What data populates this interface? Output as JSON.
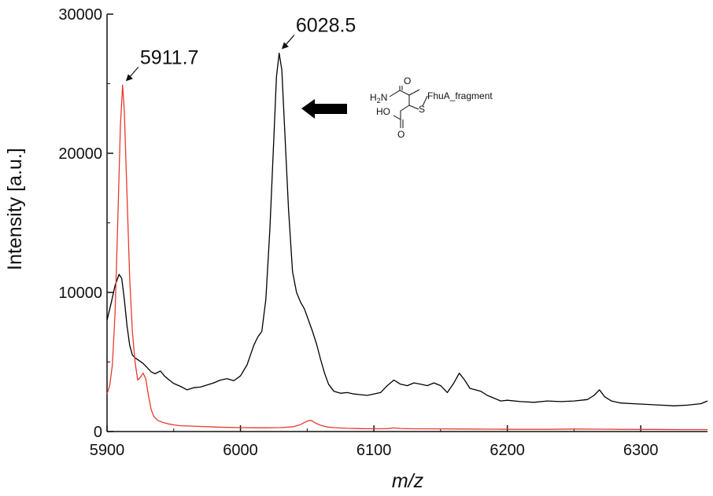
{
  "chart_data": {
    "type": "line",
    "xlabel": "m/z",
    "ylabel": "Intensity [a.u.]",
    "xlim": [
      5900,
      6350
    ],
    "ylim": [
      0,
      30000
    ],
    "x_ticks": [
      5900,
      6000,
      6100,
      6200,
      6300
    ],
    "y_ticks": [
      0,
      10000,
      20000,
      30000
    ],
    "grid": false,
    "series": [
      {
        "color": "#000000",
        "points": [
          [
            5900,
            8000
          ],
          [
            5903,
            9200
          ],
          [
            5906,
            10500
          ],
          [
            5909,
            11300
          ],
          [
            5911,
            11000
          ],
          [
            5913,
            9500
          ],
          [
            5915,
            7600
          ],
          [
            5917,
            6200
          ],
          [
            5919,
            5500
          ],
          [
            5921,
            5300
          ],
          [
            5924,
            5100
          ],
          [
            5927,
            4900
          ],
          [
            5930,
            4600
          ],
          [
            5933,
            4300
          ],
          [
            5936,
            4150
          ],
          [
            5940,
            4350
          ],
          [
            5943,
            4000
          ],
          [
            5946,
            3750
          ],
          [
            5950,
            3450
          ],
          [
            5955,
            3250
          ],
          [
            5960,
            3000
          ],
          [
            5965,
            3150
          ],
          [
            5970,
            3200
          ],
          [
            5975,
            3350
          ],
          [
            5980,
            3500
          ],
          [
            5985,
            3700
          ],
          [
            5990,
            3800
          ],
          [
            5995,
            3650
          ],
          [
            6000,
            4000
          ],
          [
            6005,
            4800
          ],
          [
            6010,
            6200
          ],
          [
            6013,
            6800
          ],
          [
            6016,
            7200
          ],
          [
            6019,
            9500
          ],
          [
            6022,
            14500
          ],
          [
            6025,
            21000
          ],
          [
            6027,
            25500
          ],
          [
            6029,
            27200
          ],
          [
            6031,
            26000
          ],
          [
            6033,
            22000
          ],
          [
            6036,
            16000
          ],
          [
            6039,
            11500
          ],
          [
            6042,
            10000
          ],
          [
            6045,
            9300
          ],
          [
            6048,
            8800
          ],
          [
            6051,
            8000
          ],
          [
            6054,
            7200
          ],
          [
            6057,
            6300
          ],
          [
            6060,
            5200
          ],
          [
            6063,
            4200
          ],
          [
            6066,
            3400
          ],
          [
            6070,
            2900
          ],
          [
            6075,
            2750
          ],
          [
            6080,
            2800
          ],
          [
            6085,
            2700
          ],
          [
            6090,
            2650
          ],
          [
            6095,
            2600
          ],
          [
            6100,
            2700
          ],
          [
            6105,
            2800
          ],
          [
            6110,
            3300
          ],
          [
            6115,
            3700
          ],
          [
            6120,
            3400
          ],
          [
            6125,
            3300
          ],
          [
            6130,
            3500
          ],
          [
            6135,
            3400
          ],
          [
            6140,
            3300
          ],
          [
            6145,
            3500
          ],
          [
            6150,
            3300
          ],
          [
            6155,
            2800
          ],
          [
            6160,
            3500
          ],
          [
            6164,
            4200
          ],
          [
            6168,
            3700
          ],
          [
            6172,
            3100
          ],
          [
            6176,
            3000
          ],
          [
            6180,
            2900
          ],
          [
            6185,
            2600
          ],
          [
            6190,
            2400
          ],
          [
            6195,
            2200
          ],
          [
            6200,
            2250
          ],
          [
            6210,
            2150
          ],
          [
            6220,
            2100
          ],
          [
            6230,
            2200
          ],
          [
            6240,
            2150
          ],
          [
            6250,
            2200
          ],
          [
            6260,
            2300
          ],
          [
            6265,
            2600
          ],
          [
            6269,
            3000
          ],
          [
            6273,
            2500
          ],
          [
            6278,
            2200
          ],
          [
            6285,
            2050
          ],
          [
            6295,
            2000
          ],
          [
            6305,
            1950
          ],
          [
            6315,
            1900
          ],
          [
            6325,
            1850
          ],
          [
            6335,
            1900
          ],
          [
            6345,
            2000
          ],
          [
            6350,
            2200
          ]
        ]
      },
      {
        "color": "#e8392f",
        "points": [
          [
            5900,
            2700
          ],
          [
            5902,
            3300
          ],
          [
            5904,
            4800
          ],
          [
            5906,
            8500
          ],
          [
            5908,
            15000
          ],
          [
            5910,
            22000
          ],
          [
            5911.7,
            24900
          ],
          [
            5913,
            23000
          ],
          [
            5915,
            17000
          ],
          [
            5917,
            11000
          ],
          [
            5919,
            7200
          ],
          [
            5921,
            5000
          ],
          [
            5923,
            3700
          ],
          [
            5925,
            3900
          ],
          [
            5927,
            4200
          ],
          [
            5929,
            3800
          ],
          [
            5931,
            2600
          ],
          [
            5933,
            1600
          ],
          [
            5935,
            1100
          ],
          [
            5938,
            800
          ],
          [
            5942,
            650
          ],
          [
            5946,
            550
          ],
          [
            5950,
            480
          ],
          [
            5955,
            420
          ],
          [
            5960,
            400
          ],
          [
            5970,
            370
          ],
          [
            5980,
            330
          ],
          [
            5990,
            300
          ],
          [
            6000,
            280
          ],
          [
            6010,
            270
          ],
          [
            6020,
            270
          ],
          [
            6030,
            280
          ],
          [
            6040,
            350
          ],
          [
            6045,
            500
          ],
          [
            6050,
            750
          ],
          [
            6053,
            800
          ],
          [
            6056,
            620
          ],
          [
            6060,
            450
          ],
          [
            6065,
            330
          ],
          [
            6070,
            280
          ],
          [
            6080,
            230
          ],
          [
            6090,
            210
          ],
          [
            6100,
            200
          ],
          [
            6110,
            210
          ],
          [
            6115,
            260
          ],
          [
            6120,
            220
          ],
          [
            6130,
            200
          ],
          [
            6150,
            190
          ],
          [
            6170,
            180
          ],
          [
            6190,
            170
          ],
          [
            6210,
            160
          ],
          [
            6230,
            160
          ],
          [
            6250,
            180
          ],
          [
            6270,
            170
          ],
          [
            6290,
            150
          ],
          [
            6310,
            150
          ],
          [
            6330,
            140
          ],
          [
            6350,
            140
          ]
        ]
      }
    ],
    "annotations": [
      {
        "text": "5911.7",
        "peak_x": 5911.7,
        "peak_y": 24900
      },
      {
        "text": "6028.5",
        "peak_x": 6028.5,
        "peak_y": 27200
      }
    ],
    "inset_structure": {
      "labels": [
        "H2N",
        "O",
        "HO",
        "O",
        "S",
        "FhuA_fragment"
      ]
    }
  }
}
